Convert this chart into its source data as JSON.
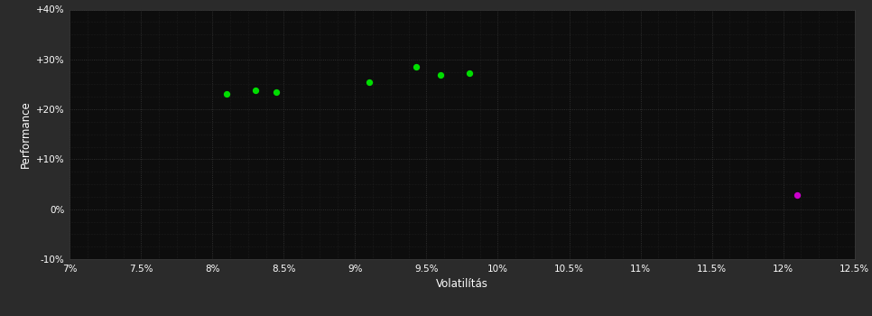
{
  "background_color": "#2b2b2b",
  "plot_bg_color": "#0d0d0d",
  "grid_color": "#3a3a3a",
  "green_color": "#00dd00",
  "magenta_color": "#cc00cc",
  "xlabel": "Volatilítás",
  "ylabel": "Performance",
  "xlim": [
    0.07,
    0.125
  ],
  "ylim": [
    -0.1,
    0.4
  ],
  "xticks": [
    0.07,
    0.075,
    0.08,
    0.085,
    0.09,
    0.095,
    0.1,
    0.105,
    0.11,
    0.115,
    0.12,
    0.125
  ],
  "yticks": [
    -0.1,
    0.0,
    0.1,
    0.2,
    0.3,
    0.4
  ],
  "ytick_labels": [
    "-10%",
    "0%",
    "+10%",
    "+20%",
    "+30%",
    "+40%"
  ],
  "xtick_labels": [
    "7%",
    "7.5%",
    "8%",
    "8.5%",
    "9%",
    "9.5%",
    "10%",
    "10.5%",
    "11%",
    "11.5%",
    "12%",
    "12.5%"
  ],
  "green_points": [
    [
      0.081,
      0.231
    ],
    [
      0.083,
      0.238
    ],
    [
      0.0845,
      0.234
    ],
    [
      0.091,
      0.255
    ],
    [
      0.0943,
      0.285
    ],
    [
      0.096,
      0.268
    ],
    [
      0.098,
      0.272
    ]
  ],
  "magenta_points": [
    [
      0.121,
      0.028
    ]
  ],
  "minor_grid_count": 4
}
